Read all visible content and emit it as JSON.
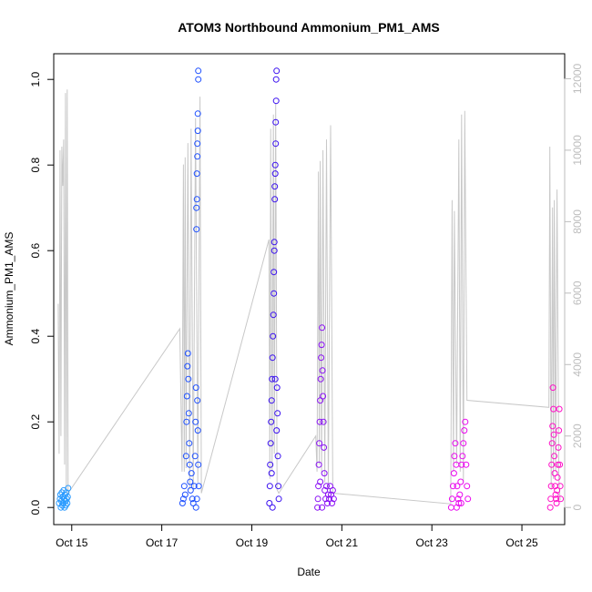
{
  "chart_data": {
    "type": "scatter",
    "title": "ATOM3 Northbound Ammonium_PM1_AMS",
    "xlabel": "Date",
    "ylabel": "Ammonium_PM1_AMS",
    "xlim": [
      14.6,
      25.95
    ],
    "ylim": [
      -0.04,
      1.06
    ],
    "y2lim": [
      -480,
      12700
    ],
    "x_ticks": [
      15,
      17,
      19,
      21,
      23,
      25
    ],
    "x_tick_labels": [
      "Oct 15",
      "Oct 17",
      "Oct 19",
      "Oct 21",
      "Oct 23",
      "Oct 25"
    ],
    "y_ticks": [
      0.0,
      0.2,
      0.4,
      0.6,
      0.8,
      1.0
    ],
    "y_tick_labels": [
      "0.0",
      "0.2",
      "0.4",
      "0.6",
      "0.8",
      "1.0"
    ],
    "y2_ticks": [
      0,
      2000,
      4000,
      6000,
      8000,
      10000,
      12000
    ],
    "y2_tick_labels": [
      "0",
      "2000",
      "4000",
      "6000",
      "8000",
      "10000",
      "12000"
    ],
    "grid": false,
    "point_colors": [
      "#2b9bff",
      "#1e50ff",
      "#3a10f0",
      "#8a10f5",
      "#ea08ef",
      "#ff10c8"
    ],
    "altitude_line_color": "#c8c8c8",
    "series": [
      {
        "day_window": [
          14.72,
          14.92
        ],
        "points": [
          [
            14.72,
            0.01
          ],
          [
            14.74,
            0.02
          ],
          [
            14.75,
            0.03
          ],
          [
            14.76,
            0.0
          ],
          [
            14.77,
            0.015
          ],
          [
            14.78,
            0.035
          ],
          [
            14.79,
            0.005
          ],
          [
            14.8,
            0.025
          ],
          [
            14.81,
            0.01
          ],
          [
            14.82,
            0.04
          ],
          [
            14.83,
            0.02
          ],
          [
            14.84,
            0.0
          ],
          [
            14.85,
            0.03
          ],
          [
            14.86,
            0.015
          ],
          [
            14.87,
            0.005
          ],
          [
            14.88,
            0.035
          ],
          [
            14.89,
            0.02
          ],
          [
            14.9,
            0.01
          ],
          [
            14.91,
            0.025
          ],
          [
            14.92,
            0.045
          ]
        ]
      },
      {
        "day_window": [
          17.45,
          17.82
        ],
        "points": [
          [
            17.46,
            0.01
          ],
          [
            17.48,
            0.02
          ],
          [
            17.5,
            0.05
          ],
          [
            17.52,
            0.03
          ],
          [
            17.54,
            0.12
          ],
          [
            17.55,
            0.2
          ],
          [
            17.56,
            0.26
          ],
          [
            17.57,
            0.33
          ],
          [
            17.58,
            0.36
          ],
          [
            17.59,
            0.3
          ],
          [
            17.6,
            0.22
          ],
          [
            17.61,
            0.15
          ],
          [
            17.62,
            0.1
          ],
          [
            17.63,
            0.06
          ],
          [
            17.64,
            0.04
          ],
          [
            17.66,
            0.08
          ],
          [
            17.68,
            0.02
          ],
          [
            17.7,
            0.01
          ],
          [
            17.72,
            0.05
          ],
          [
            17.74,
            0.12
          ],
          [
            17.75,
            0.2
          ],
          [
            17.76,
            0.28
          ],
          [
            17.77,
            0.65
          ],
          [
            17.77,
            0.7
          ],
          [
            17.78,
            0.72
          ],
          [
            17.78,
            0.78
          ],
          [
            17.79,
            0.82
          ],
          [
            17.79,
            0.85
          ],
          [
            17.8,
            0.88
          ],
          [
            17.8,
            0.92
          ],
          [
            17.81,
            1.0
          ],
          [
            17.81,
            1.02
          ],
          [
            17.79,
            0.25
          ],
          [
            17.8,
            0.18
          ],
          [
            17.81,
            0.1
          ],
          [
            17.82,
            0.05
          ],
          [
            17.78,
            0.02
          ],
          [
            17.76,
            0.0
          ]
        ]
      },
      {
        "day_window": [
          19.38,
          19.6
        ],
        "points": [
          [
            19.39,
            0.01
          ],
          [
            19.4,
            0.05
          ],
          [
            19.41,
            0.1
          ],
          [
            19.42,
            0.15
          ],
          [
            19.43,
            0.2
          ],
          [
            19.44,
            0.25
          ],
          [
            19.45,
            0.3
          ],
          [
            19.46,
            0.35
          ],
          [
            19.47,
            0.4
          ],
          [
            19.48,
            0.45
          ],
          [
            19.49,
            0.5
          ],
          [
            19.49,
            0.55
          ],
          [
            19.5,
            0.6
          ],
          [
            19.5,
            0.62
          ],
          [
            19.51,
            0.72
          ],
          [
            19.51,
            0.75
          ],
          [
            19.52,
            0.78
          ],
          [
            19.52,
            0.8
          ],
          [
            19.53,
            0.85
          ],
          [
            19.53,
            0.9
          ],
          [
            19.54,
            0.95
          ],
          [
            19.54,
            1.0
          ],
          [
            19.55,
            1.02
          ],
          [
            19.56,
            0.28
          ],
          [
            19.57,
            0.22
          ],
          [
            19.58,
            0.12
          ],
          [
            19.59,
            0.05
          ],
          [
            19.6,
            0.02
          ],
          [
            19.44,
            0.08
          ],
          [
            19.46,
            0.0
          ],
          [
            19.52,
            0.3
          ],
          [
            19.55,
            0.18
          ]
        ]
      },
      {
        "day_window": [
          20.45,
          20.82
        ],
        "points": [
          [
            20.46,
            0.0
          ],
          [
            20.47,
            0.02
          ],
          [
            20.48,
            0.05
          ],
          [
            20.49,
            0.1
          ],
          [
            20.5,
            0.15
          ],
          [
            20.51,
            0.2
          ],
          [
            20.52,
            0.25
          ],
          [
            20.53,
            0.3
          ],
          [
            20.54,
            0.35
          ],
          [
            20.55,
            0.38
          ],
          [
            20.56,
            0.42
          ],
          [
            20.57,
            0.32
          ],
          [
            20.58,
            0.26
          ],
          [
            20.59,
            0.2
          ],
          [
            20.6,
            0.14
          ],
          [
            20.61,
            0.08
          ],
          [
            20.62,
            0.04
          ],
          [
            20.64,
            0.02
          ],
          [
            20.66,
            0.05
          ],
          [
            20.68,
            0.01
          ],
          [
            20.7,
            0.03
          ],
          [
            20.72,
            0.02
          ],
          [
            20.74,
            0.05
          ],
          [
            20.76,
            0.03
          ],
          [
            20.78,
            0.01
          ],
          [
            20.8,
            0.04
          ],
          [
            20.82,
            0.02
          ],
          [
            20.52,
            0.06
          ],
          [
            20.56,
            0.0
          ]
        ]
      },
      {
        "day_window": [
          23.42,
          23.8
        ],
        "points": [
          [
            23.43,
            0.0
          ],
          [
            23.45,
            0.02
          ],
          [
            23.47,
            0.05
          ],
          [
            23.49,
            0.08
          ],
          [
            23.5,
            0.12
          ],
          [
            23.52,
            0.15
          ],
          [
            23.54,
            0.1
          ],
          [
            23.56,
            0.05
          ],
          [
            23.58,
            0.02
          ],
          [
            23.6,
            0.01
          ],
          [
            23.62,
            0.03
          ],
          [
            23.64,
            0.06
          ],
          [
            23.66,
            0.1
          ],
          [
            23.68,
            0.12
          ],
          [
            23.7,
            0.15
          ],
          [
            23.72,
            0.18
          ],
          [
            23.74,
            0.2
          ],
          [
            23.76,
            0.1
          ],
          [
            23.78,
            0.05
          ],
          [
            23.8,
            0.02
          ],
          [
            23.55,
            0.0
          ],
          [
            23.65,
            0.01
          ]
        ]
      },
      {
        "day_window": [
          25.62,
          25.86
        ],
        "points": [
          [
            25.63,
            0.0
          ],
          [
            25.64,
            0.02
          ],
          [
            25.65,
            0.05
          ],
          [
            25.66,
            0.1
          ],
          [
            25.67,
            0.15
          ],
          [
            25.68,
            0.19
          ],
          [
            25.69,
            0.28
          ],
          [
            25.7,
            0.23
          ],
          [
            25.71,
            0.17
          ],
          [
            25.72,
            0.12
          ],
          [
            25.73,
            0.08
          ],
          [
            25.74,
            0.05
          ],
          [
            25.75,
            0.03
          ],
          [
            25.76,
            0.02
          ],
          [
            25.77,
            0.01
          ],
          [
            25.78,
            0.04
          ],
          [
            25.79,
            0.07
          ],
          [
            25.8,
            0.1
          ],
          [
            25.81,
            0.14
          ],
          [
            25.82,
            0.18
          ],
          [
            25.83,
            0.23
          ],
          [
            25.84,
            0.1
          ],
          [
            25.85,
            0.05
          ],
          [
            25.86,
            0.02
          ]
        ]
      }
    ],
    "altitude_trace": {
      "axis": "right",
      "points": [
        [
          14.7,
          5700
        ],
        [
          14.72,
          1500
        ],
        [
          14.74,
          10000
        ],
        [
          14.76,
          2000
        ],
        [
          14.78,
          10100
        ],
        [
          14.8,
          9000
        ],
        [
          14.82,
          10300
        ],
        [
          14.84,
          1200
        ],
        [
          14.86,
          11600
        ],
        [
          14.88,
          500
        ],
        [
          14.9,
          11700
        ],
        [
          14.92,
          400
        ],
        [
          17.4,
          5000
        ],
        [
          17.45,
          1000
        ],
        [
          17.48,
          9600
        ],
        [
          17.5,
          1000
        ],
        [
          17.52,
          9800
        ],
        [
          17.54,
          1100
        ],
        [
          17.58,
          10200
        ],
        [
          17.62,
          500
        ],
        [
          17.65,
          10600
        ],
        [
          17.7,
          500
        ],
        [
          17.75,
          10900
        ],
        [
          17.8,
          700
        ],
        [
          17.85,
          11500
        ],
        [
          17.88,
          400
        ],
        [
          19.38,
          7500
        ],
        [
          19.4,
          800
        ],
        [
          19.42,
          10600
        ],
        [
          19.45,
          1000
        ],
        [
          19.48,
          11000
        ],
        [
          19.5,
          1500
        ],
        [
          19.53,
          11300
        ],
        [
          19.56,
          500
        ],
        [
          19.6,
          400
        ],
        [
          20.42,
          2000
        ],
        [
          20.45,
          1000
        ],
        [
          20.48,
          9400
        ],
        [
          20.5,
          1200
        ],
        [
          20.52,
          9700
        ],
        [
          20.55,
          1000
        ],
        [
          20.58,
          10000
        ],
        [
          20.62,
          700
        ],
        [
          20.66,
          10300
        ],
        [
          20.7,
          500
        ],
        [
          20.75,
          10700
        ],
        [
          20.8,
          400
        ],
        [
          23.42,
          100
        ],
        [
          23.45,
          8600
        ],
        [
          23.48,
          1000
        ],
        [
          23.5,
          8300
        ],
        [
          23.55,
          1200
        ],
        [
          23.6,
          10300
        ],
        [
          23.63,
          1000
        ],
        [
          23.66,
          11000
        ],
        [
          23.7,
          700
        ],
        [
          23.73,
          11100
        ],
        [
          23.78,
          3000
        ],
        [
          25.6,
          2800
        ],
        [
          25.62,
          10100
        ],
        [
          25.65,
          500
        ],
        [
          25.68,
          8400
        ],
        [
          25.7,
          800
        ],
        [
          25.72,
          8600
        ],
        [
          25.75,
          1000
        ],
        [
          25.78,
          8900
        ],
        [
          25.82,
          800
        ],
        [
          25.85,
          200
        ]
      ]
    }
  }
}
